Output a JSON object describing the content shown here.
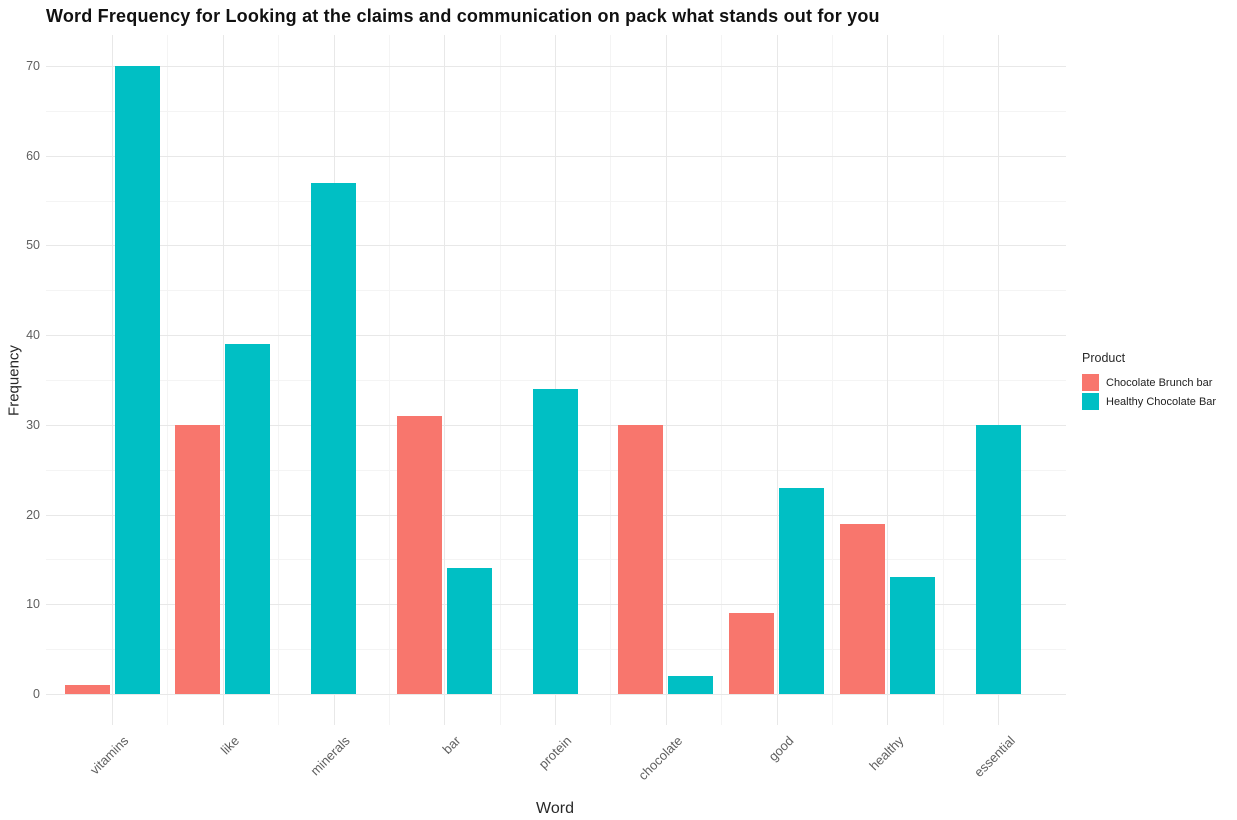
{
  "chart_data": {
    "type": "bar",
    "title": "Word Frequency for Looking at the claims and communication on pack what stands out for you",
    "xlabel": "Word",
    "ylabel": "Frequency",
    "categories": [
      "vitamins",
      "like",
      "minerals",
      "bar",
      "protein",
      "chocolate",
      "good",
      "healthy",
      "essential"
    ],
    "series": [
      {
        "name": "Chocolate Brunch bar",
        "color": "#F8766D",
        "values": [
          1,
          30,
          null,
          31,
          null,
          30,
          9,
          19,
          null
        ]
      },
      {
        "name": "Healthy Chocolate Bar",
        "color": "#00BFC4",
        "values": [
          70,
          39,
          57,
          14,
          34,
          2,
          23,
          13,
          30
        ]
      }
    ],
    "ylim": [
      0,
      70
    ],
    "yticks": [
      0,
      10,
      20,
      30,
      40,
      50,
      60,
      70
    ],
    "minor_yticks": [
      5,
      15,
      25,
      35,
      45,
      55,
      65
    ],
    "grid": "major and minor gridlines, light gray on white background",
    "legend_title": "Product",
    "legend_position": "right"
  }
}
